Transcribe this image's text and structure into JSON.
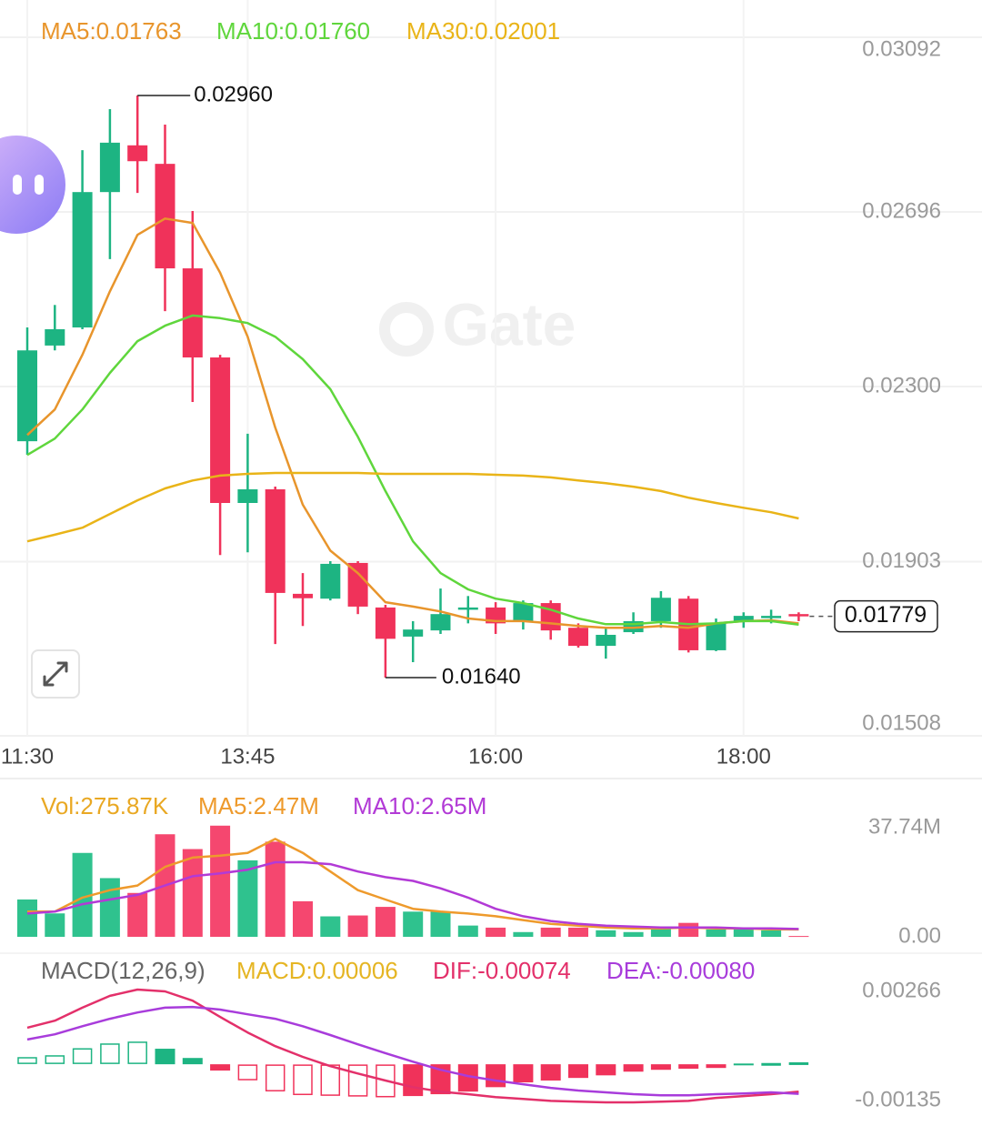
{
  "chart_data": [
    {
      "type": "candlestick",
      "categories": [
        "11:30",
        null,
        null,
        null,
        null,
        null,
        null,
        null,
        "13:45",
        null,
        null,
        null,
        null,
        null,
        null,
        null,
        null,
        "16:00",
        null,
        null,
        null,
        null,
        null,
        null,
        null,
        null,
        "18:00",
        null,
        null
      ],
      "open": [
        0.02176,
        0.02393,
        0.02434,
        0.02741,
        0.02847,
        0.02805,
        0.02568,
        0.02366,
        0.02036,
        0.02067,
        0.0183,
        0.01819,
        0.019,
        0.01799,
        0.01733,
        0.01747,
        0.01794,
        0.01799,
        0.01768,
        0.01809,
        0.01753,
        0.01712,
        0.01743,
        0.01768,
        0.01819,
        0.01702,
        0.01768,
        0.01776,
        0.01784
      ],
      "high": [
        0.02434,
        0.02485,
        0.02836,
        0.02929,
        0.0296,
        0.02894,
        0.02698,
        0.02372,
        0.02193,
        0.02073,
        0.01877,
        0.01904,
        0.01904,
        0.01805,
        0.01768,
        0.01842,
        0.01825,
        0.01811,
        0.01815,
        0.01815,
        0.01763,
        0.01753,
        0.01788,
        0.01836,
        0.01825,
        0.01774,
        0.01788,
        0.01794,
        0.01788
      ],
      "low": [
        0.02145,
        0.02382,
        0.0243,
        0.02589,
        0.02739,
        0.02471,
        0.02265,
        0.01918,
        0.01924,
        0.01716,
        0.01757,
        0.01815,
        0.01784,
        0.0164,
        0.01675,
        0.01739,
        0.01763,
        0.01739,
        0.01749,
        0.01726,
        0.01708,
        0.01683,
        0.01739,
        0.01753,
        0.01697,
        0.017,
        0.01753,
        0.01763,
        0.01768
      ],
      "close": [
        0.02382,
        0.0243,
        0.02741,
        0.02853,
        0.02811,
        0.02568,
        0.02366,
        0.02036,
        0.02067,
        0.01832,
        0.0182,
        0.01898,
        0.01801,
        0.01728,
        0.01749,
        0.01784,
        0.01799,
        0.01763,
        0.01809,
        0.01747,
        0.01712,
        0.01737,
        0.01768,
        0.01821,
        0.01702,
        0.01763,
        0.0178,
        0.0178,
        0.01779
      ],
      "up_color": "#1db482",
      "down_color": "#f0325a",
      "series": [
        {
          "name": "MA5:0.01763",
          "color": "#e8952c",
          "values": [
            0.0219,
            0.02248,
            0.02372,
            0.02516,
            0.02644,
            0.02681,
            0.02671,
            0.02558,
            0.02413,
            0.02207,
            0.02032,
            0.01928,
            0.01877,
            0.01811,
            0.01801,
            0.0179,
            0.01774,
            0.01768,
            0.01768,
            0.01763,
            0.01757,
            0.01753,
            0.01753,
            0.01757,
            0.01753,
            0.01763,
            0.01768,
            0.0177,
            0.01763
          ]
        },
        {
          "name": "MA10:0.01760",
          "color": "#5fd63c",
          "values": [
            0.02145,
            0.02182,
            0.02248,
            0.02331,
            0.02403,
            0.02438,
            0.02461,
            0.02455,
            0.02444,
            0.02413,
            0.02362,
            0.02294,
            0.02186,
            0.02063,
            0.01949,
            0.01877,
            0.0184,
            0.01819,
            0.01809,
            0.01794,
            0.01774,
            0.01761,
            0.01761,
            0.01766,
            0.01761,
            0.01763,
            0.01768,
            0.01768,
            0.0176
          ]
        },
        {
          "name": "MA30:0.02001",
          "color": "#e9b418",
          "values": [
            0.01949,
            0.01964,
            0.0198,
            0.02011,
            0.02042,
            0.02069,
            0.02087,
            0.02098,
            0.02102,
            0.02104,
            0.02104,
            0.02104,
            0.02104,
            0.02102,
            0.02102,
            0.02102,
            0.02102,
            0.021,
            0.02098,
            0.02094,
            0.02087,
            0.02081,
            0.02073,
            0.02063,
            0.02048,
            0.02036,
            0.02025,
            0.02015,
            0.02001
          ]
        }
      ],
      "max_label": "0.02960",
      "min_label": "0.01640",
      "last_label": "0.01779",
      "watermark": "Gate",
      "ylim": [
        0.01508,
        0.03092
      ],
      "yticks": [
        0.03092,
        0.02696,
        {
          "value": 0.023,
          "label": "0.02300"
        },
        0.01903,
        0.01508
      ],
      "grid": true
    },
    {
      "type": "bar",
      "legend_label": "Vol:275.87K",
      "color": "#e9a823",
      "values": [
        12600000,
        7900000,
        28300000,
        19800000,
        14800000,
        34600000,
        29600000,
        37500000,
        25800000,
        32100000,
        12000000,
        6900000,
        7200000,
        10100000,
        8500000,
        8500000,
        3800000,
        3100000,
        1600000,
        3100000,
        3100000,
        2200000,
        1600000,
        3100000,
        4700000,
        2500000,
        2500000,
        2200000,
        275870
      ],
      "up_color": "#2fc28e",
      "down_color": "#f5476f",
      "series": [
        {
          "name": "MA5:2.47M",
          "color": "#ee9a2c",
          "values": [
            8490000,
            8490000,
            13210000,
            15730000,
            17300000,
            23590000,
            26730000,
            27360000,
            28310000,
            33020000,
            28310000,
            22020000,
            15730000,
            12580000,
            9440000,
            8490000,
            7860000,
            6920000,
            5660000,
            4400000,
            3770000,
            3150000,
            2830000,
            2830000,
            3150000,
            2830000,
            2830000,
            2520000,
            2470000
          ]
        },
        {
          "name": "MA10:2.65M",
          "color": "#b23ad6",
          "values": [
            7860000,
            8490000,
            11010000,
            12580000,
            14150000,
            17300000,
            20440000,
            21390000,
            22640000,
            25160000,
            25160000,
            24530000,
            22020000,
            20130000,
            18870000,
            16350000,
            13210000,
            9440000,
            6920000,
            5350000,
            4400000,
            3770000,
            3460000,
            3150000,
            3150000,
            3150000,
            2830000,
            2830000,
            2650000
          ]
        }
      ],
      "ylim": [
        0,
        37740000
      ],
      "yticks": [
        {
          "value": 37740000,
          "label": "37.74M"
        },
        {
          "value": 0,
          "label": "0.00"
        }
      ],
      "grid": false
    },
    {
      "type": "macd",
      "title": "MACD(12,26,9)",
      "title_color": "#666666",
      "value_name": "MACD:0.00006",
      "color": "#e5b523",
      "values": [
        0.0002,
        0.00025,
        0.00044,
        0.00057,
        0.00062,
        0.00042,
        0.00017,
        -0.00017,
        -0.00044,
        -0.00074,
        -0.00084,
        -0.00086,
        -0.00088,
        -0.0009,
        -0.00086,
        -0.00081,
        -0.00074,
        -0.00062,
        -0.00049,
        -0.00044,
        -0.00037,
        -0.0003,
        -0.0002,
        -0.00015,
        -0.00012,
        -0.0001,
        2e-05,
        4e-05,
        6e-05
      ],
      "up_color": "#1db482",
      "down_color": "#f0325a",
      "series": [
        {
          "name": "DIF:-0.00074",
          "color": "#e3306a",
          "values": [
            0.00099,
            0.00118,
            0.00153,
            0.00185,
            0.00202,
            0.00197,
            0.00172,
            0.00128,
            0.00086,
            0.00049,
            0.0002,
            -5e-05,
            -0.00025,
            -0.00044,
            -0.00062,
            -0.00074,
            -0.00081,
            -0.00089,
            -0.00094,
            -0.00099,
            -0.00101,
            -0.00103,
            -0.00103,
            -0.00101,
            -0.00099,
            -0.00091,
            -0.00086,
            -0.00081,
            -0.00074
          ]
        },
        {
          "name": "DEA:-0.00080",
          "color": "#a83cdb",
          "values": [
            0.00067,
            0.00081,
            0.00103,
            0.00123,
            0.0014,
            0.00153,
            0.00155,
            0.00148,
            0.00135,
            0.00123,
            0.00103,
            0.00079,
            0.00054,
            0.0003,
            7e-05,
            -0.00015,
            -0.00032,
            -0.00044,
            -0.00054,
            -0.00064,
            -0.00071,
            -0.00076,
            -0.00081,
            -0.00084,
            -0.00084,
            -0.00081,
            -0.00079,
            -0.00076,
            -0.0008
          ]
        }
      ],
      "ylim": [
        -0.00135,
        0.00266
      ],
      "yticks": [
        0.00266,
        -0.00135
      ],
      "grid": false
    }
  ]
}
